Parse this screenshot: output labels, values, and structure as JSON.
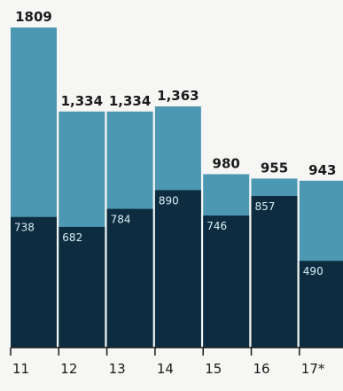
{
  "chart_data": {
    "type": "bar",
    "categories": [
      "11",
      "12",
      "13",
      "14",
      "15",
      "16",
      "17*"
    ],
    "total_labels": [
      "1809",
      "1,334",
      "1,334",
      "1,363",
      "980",
      "955",
      "943"
    ],
    "inner_labels": [
      "738",
      "682",
      "784",
      "890",
      "746",
      "857",
      "490"
    ],
    "series": [
      {
        "values": [
          1809,
          1334,
          1334,
          1363,
          980,
          955,
          943
        ]
      },
      {
        "values": [
          738,
          682,
          784,
          890,
          746,
          857,
          490
        ]
      }
    ],
    "stacked": false,
    "ylim": [
      0,
      1809
    ],
    "grid": false,
    "colors": {
      "total": "#4c98b3",
      "inner": "#0d2c3f",
      "inner_text": "#d8eef6",
      "axis": "#1a1a1a"
    }
  }
}
